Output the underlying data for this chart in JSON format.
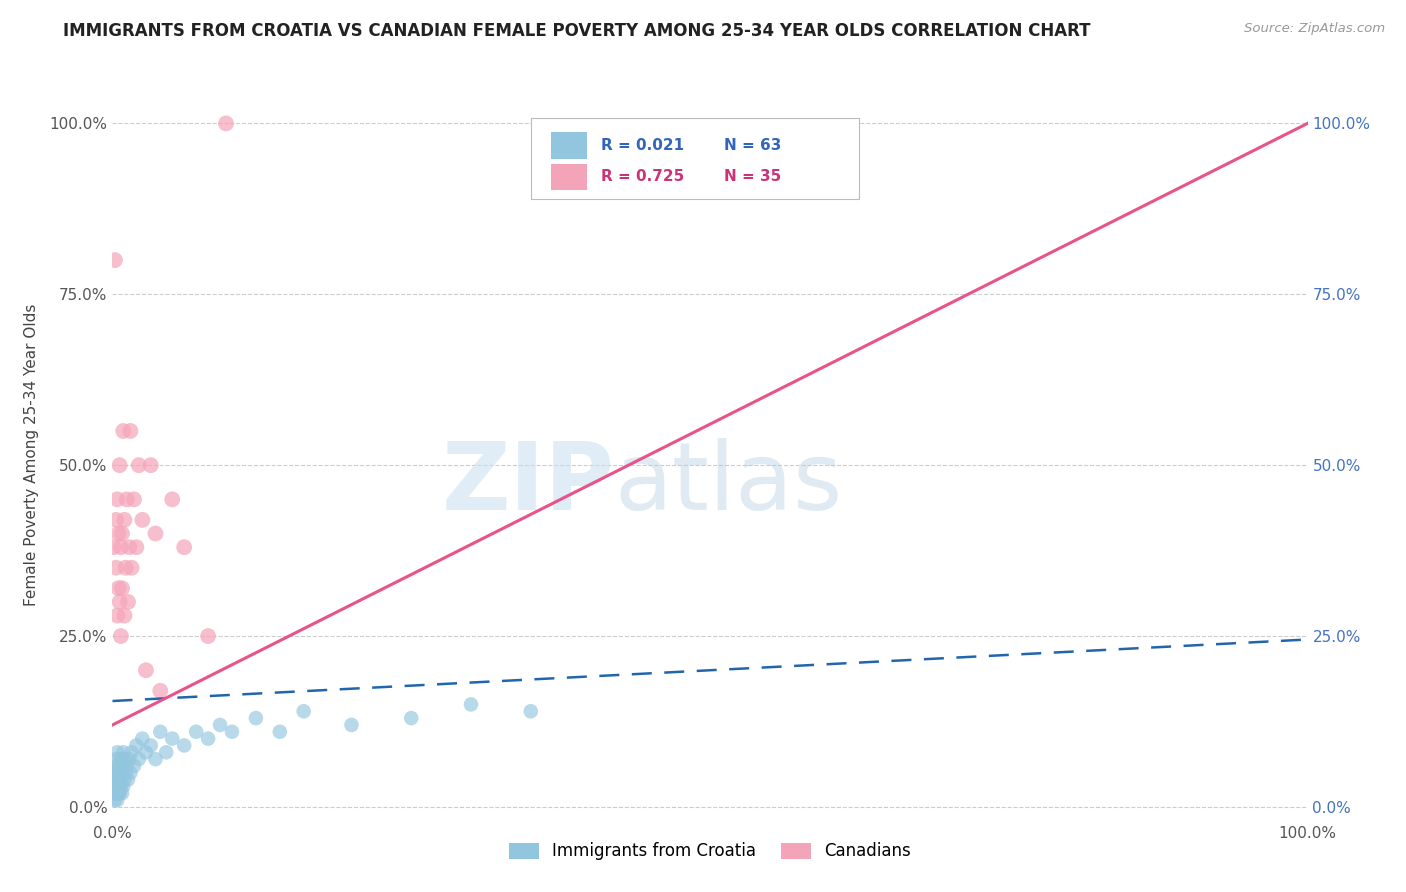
{
  "title": "IMMIGRANTS FROM CROATIA VS CANADIAN FEMALE POVERTY AMONG 25-34 YEAR OLDS CORRELATION CHART",
  "source_text": "Source: ZipAtlas.com",
  "ylabel": "Female Poverty Among 25-34 Year Olds",
  "watermark_zip": "ZIP",
  "watermark_atlas": "atlas",
  "legend_blue_r": 0.021,
  "legend_blue_n": 63,
  "legend_pink_r": 0.725,
  "legend_pink_n": 35,
  "blue_color": "#92c5de",
  "pink_color": "#f4a4b8",
  "blue_line_color": "#2166ac",
  "pink_line_color": "#e8538a",
  "blue_label": "Immigrants from Croatia",
  "pink_label": "Canadians",
  "blue_scatter_x": [
    0.001,
    0.001,
    0.001,
    0.001,
    0.002,
    0.002,
    0.002,
    0.002,
    0.002,
    0.003,
    0.003,
    0.003,
    0.003,
    0.003,
    0.004,
    0.004,
    0.004,
    0.004,
    0.004,
    0.005,
    0.005,
    0.005,
    0.005,
    0.006,
    0.006,
    0.006,
    0.007,
    0.007,
    0.007,
    0.008,
    0.008,
    0.009,
    0.009,
    0.01,
    0.01,
    0.011,
    0.012,
    0.013,
    0.014,
    0.015,
    0.016,
    0.018,
    0.02,
    0.022,
    0.025,
    0.028,
    0.032,
    0.036,
    0.04,
    0.045,
    0.05,
    0.06,
    0.07,
    0.08,
    0.09,
    0.1,
    0.12,
    0.14,
    0.16,
    0.2,
    0.25,
    0.3,
    0.35
  ],
  "blue_scatter_y": [
    0.02,
    0.03,
    0.04,
    0.05,
    0.01,
    0.02,
    0.03,
    0.04,
    0.06,
    0.02,
    0.03,
    0.04,
    0.05,
    0.07,
    0.01,
    0.02,
    0.03,
    0.05,
    0.08,
    0.02,
    0.03,
    0.04,
    0.06,
    0.02,
    0.04,
    0.05,
    0.03,
    0.05,
    0.07,
    0.02,
    0.06,
    0.03,
    0.08,
    0.04,
    0.07,
    0.05,
    0.06,
    0.04,
    0.07,
    0.05,
    0.08,
    0.06,
    0.09,
    0.07,
    0.1,
    0.08,
    0.09,
    0.07,
    0.11,
    0.08,
    0.1,
    0.09,
    0.11,
    0.1,
    0.12,
    0.11,
    0.13,
    0.11,
    0.14,
    0.12,
    0.13,
    0.15,
    0.14
  ],
  "pink_scatter_x": [
    0.001,
    0.002,
    0.003,
    0.003,
    0.004,
    0.004,
    0.005,
    0.005,
    0.006,
    0.006,
    0.007,
    0.007,
    0.008,
    0.008,
    0.009,
    0.01,
    0.01,
    0.011,
    0.012,
    0.013,
    0.014,
    0.015,
    0.016,
    0.018,
    0.02,
    0.022,
    0.025,
    0.028,
    0.032,
    0.036,
    0.04,
    0.05,
    0.06,
    0.08,
    0.095
  ],
  "pink_scatter_y": [
    0.38,
    0.8,
    0.35,
    0.42,
    0.28,
    0.45,
    0.32,
    0.4,
    0.3,
    0.5,
    0.25,
    0.38,
    0.32,
    0.4,
    0.55,
    0.28,
    0.42,
    0.35,
    0.45,
    0.3,
    0.38,
    0.55,
    0.35,
    0.45,
    0.38,
    0.5,
    0.42,
    0.2,
    0.5,
    0.4,
    0.17,
    0.45,
    0.38,
    0.25,
    1.0
  ],
  "blue_trendline_x": [
    0.0,
    1.0
  ],
  "blue_trendline_y": [
    0.155,
    0.245
  ],
  "pink_trendline_x": [
    0.0,
    1.0
  ],
  "pink_trendline_y": [
    0.12,
    1.0
  ],
  "xmin": 0.0,
  "xmax": 1.0,
  "ymin": -0.02,
  "ymax": 1.05,
  "yticks": [
    0.0,
    0.25,
    0.5,
    0.75,
    1.0
  ],
  "ytick_labels": [
    "0.0%",
    "25.0%",
    "50.0%",
    "75.0%",
    "100.0%"
  ],
  "xtick_left": "0.0%",
  "xtick_right": "100.0%",
  "grid_color": "#cccccc",
  "bg_color": "#ffffff",
  "title_color": "#222222",
  "source_color": "#999999",
  "ylabel_color": "#444444",
  "left_tick_color": "#555555",
  "right_tick_color": "#4472c4"
}
